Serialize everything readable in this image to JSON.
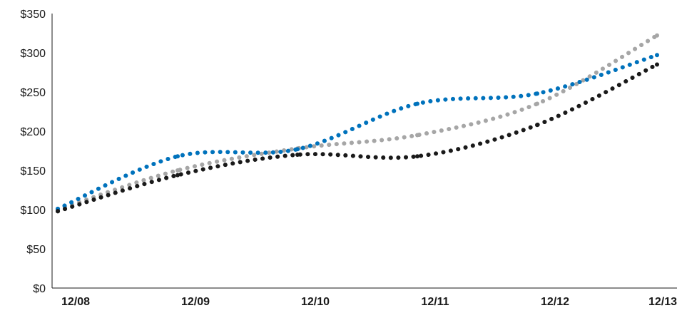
{
  "chart_data": {
    "type": "line",
    "title": "",
    "xlabel": "",
    "ylabel": "",
    "categories": [
      "12/08",
      "12/09",
      "12/10",
      "12/11",
      "12/12",
      "12/13"
    ],
    "x_tick_labels": [
      "12/08",
      "12/09",
      "12/10",
      "12/11",
      "12/12",
      "12/13"
    ],
    "y_tick_labels": [
      "$0",
      "$50",
      "$100",
      "$150",
      "$200",
      "$250",
      "$300",
      "$350"
    ],
    "y_tick_values": [
      0,
      50,
      100,
      150,
      200,
      250,
      300,
      350
    ],
    "ylim": [
      0,
      350
    ],
    "grid": false,
    "line_style": "dotted",
    "series": [
      {
        "color": "#a6a6a6",
        "values": [
          100,
          150,
          178,
          195,
          235,
          322
        ]
      },
      {
        "color": "#0072bc",
        "values": [
          101,
          168,
          177,
          235,
          248,
          297
        ]
      },
      {
        "color": "#1a1a1a",
        "values": [
          98,
          144,
          170,
          168,
          208,
          285
        ]
      }
    ]
  }
}
